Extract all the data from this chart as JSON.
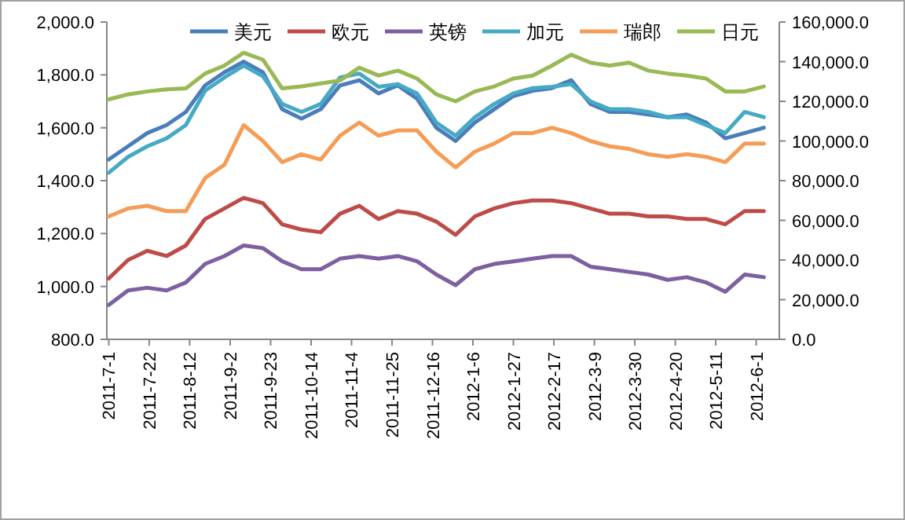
{
  "chart_data": {
    "type": "line",
    "x": [
      "2011-07-01",
      "2011-07-11",
      "2011-07-21",
      "2011-07-31",
      "2011-08-10",
      "2011-08-20",
      "2011-08-30",
      "2011-09-09",
      "2011-09-19",
      "2011-09-29",
      "2011-10-09",
      "2011-10-19",
      "2011-10-29",
      "2011-11-08",
      "2011-11-18",
      "2011-11-28",
      "2011-12-08",
      "2011-12-18",
      "2011-12-28",
      "2012-01-07",
      "2012-01-17",
      "2012-01-27",
      "2012-02-06",
      "2012-02-16",
      "2012-02-26",
      "2012-03-07",
      "2012-03-17",
      "2012-03-27",
      "2012-04-06",
      "2012-04-16",
      "2012-04-26",
      "2012-05-06",
      "2012-05-16",
      "2012-05-26",
      "2012-06-05"
    ],
    "series": [
      {
        "name": "美元",
        "color": "#4a7ebb",
        "values": [
          1480,
          1530,
          1580,
          1610,
          1660,
          1760,
          1810,
          1850,
          1810,
          1670,
          1635,
          1670,
          1760,
          1780,
          1730,
          1760,
          1710,
          1600,
          1550,
          1620,
          1670,
          1720,
          1740,
          1750,
          1780,
          1690,
          1660,
          1660,
          1650,
          1640,
          1650,
          1620,
          1560,
          1580,
          1600
        ]
      },
      {
        "name": "欧元",
        "color": "#be4b48",
        "values": [
          1030,
          1100,
          1135,
          1115,
          1155,
          1255,
          1295,
          1335,
          1315,
          1235,
          1215,
          1205,
          1275,
          1305,
          1255,
          1285,
          1275,
          1245,
          1195,
          1265,
          1295,
          1315,
          1325,
          1325,
          1315,
          1295,
          1275,
          1275,
          1265,
          1265,
          1255,
          1255,
          1235,
          1285,
          1285
        ]
      },
      {
        "name": "英镑",
        "color": "#7d60a0",
        "values": [
          930,
          985,
          995,
          985,
          1015,
          1085,
          1115,
          1155,
          1145,
          1095,
          1065,
          1065,
          1105,
          1115,
          1105,
          1115,
          1095,
          1045,
          1005,
          1065,
          1085,
          1095,
          1105,
          1115,
          1115,
          1075,
          1065,
          1055,
          1045,
          1025,
          1035,
          1015,
          980,
          1045,
          1035
        ]
      },
      {
        "name": "加元",
        "color": "#46aac5",
        "values": [
          1430,
          1490,
          1530,
          1560,
          1610,
          1740,
          1790,
          1835,
          1795,
          1690,
          1660,
          1690,
          1790,
          1805,
          1755,
          1765,
          1730,
          1620,
          1570,
          1640,
          1690,
          1730,
          1750,
          1755,
          1765,
          1700,
          1670,
          1670,
          1660,
          1640,
          1640,
          1610,
          1580,
          1660,
          1640
        ]
      },
      {
        "name": "瑞郎",
        "color": "#f59d56",
        "values": [
          1265,
          1295,
          1305,
          1285,
          1285,
          1410,
          1460,
          1610,
          1550,
          1470,
          1500,
          1480,
          1570,
          1620,
          1570,
          1590,
          1590,
          1510,
          1450,
          1510,
          1540,
          1580,
          1580,
          1600,
          1580,
          1550,
          1530,
          1520,
          1500,
          1490,
          1500,
          1490,
          1470,
          1540,
          1540
        ]
      },
      {
        "name": "日元",
        "color": "#98b954",
        "axis": "y2",
        "values": [
          121000,
          123500,
          125000,
          126000,
          126500,
          134000,
          138000,
          144500,
          141000,
          126500,
          127500,
          129000,
          130500,
          137000,
          133000,
          135500,
          131500,
          123500,
          120000,
          125000,
          127500,
          131500,
          133000,
          138000,
          143500,
          139500,
          138000,
          139500,
          135500,
          134000,
          133000,
          131500,
          125000,
          125000,
          127500
        ]
      }
    ],
    "xlim": [
      "2011-06-30",
      "2012-06-13"
    ],
    "xticks": [
      {
        "value": "2011-07-01",
        "label": "2011-7-1"
      },
      {
        "value": "2011-07-22",
        "label": "2011-7-22"
      },
      {
        "value": "2011-08-12",
        "label": "2011-8-12"
      },
      {
        "value": "2011-09-02",
        "label": "2011-9-2"
      },
      {
        "value": "2011-09-23",
        "label": "2011-9-23"
      },
      {
        "value": "2011-10-14",
        "label": "2011-10-14"
      },
      {
        "value": "2011-11-04",
        "label": "2011-11-4"
      },
      {
        "value": "2011-11-25",
        "label": "2011-11-25"
      },
      {
        "value": "2011-12-16",
        "label": "2011-12-16"
      },
      {
        "value": "2012-01-06",
        "label": "2012-1-6"
      },
      {
        "value": "2012-01-27",
        "label": "2012-1-27"
      },
      {
        "value": "2012-02-17",
        "label": "2012-2-17"
      },
      {
        "value": "2012-03-09",
        "label": "2012-3-9"
      },
      {
        "value": "2012-03-30",
        "label": "2012-3-30"
      },
      {
        "value": "2012-04-20",
        "label": "2012-4-20"
      },
      {
        "value": "2012-05-11",
        "label": "2012-5-11"
      },
      {
        "value": "2012-06-01",
        "label": "2012-6-1"
      }
    ],
    "ylim": [
      800,
      2000
    ],
    "yticks": [
      {
        "value": 800,
        "label": "800.0"
      },
      {
        "value": 1000,
        "label": "1,000.0"
      },
      {
        "value": 1200,
        "label": "1,200.0"
      },
      {
        "value": 1400,
        "label": "1,400.0"
      },
      {
        "value": 1600,
        "label": "1,600.0"
      },
      {
        "value": 1800,
        "label": "1,800.0"
      },
      {
        "value": 2000,
        "label": "2,000.0"
      }
    ],
    "y2lim": [
      0,
      160000
    ],
    "y2ticks": [
      {
        "value": 0,
        "label": "0.0"
      },
      {
        "value": 20000,
        "label": "20,000.0"
      },
      {
        "value": 40000,
        "label": "40,000.0"
      },
      {
        "value": 60000,
        "label": "60,000.0"
      },
      {
        "value": 80000,
        "label": "80,000.0"
      },
      {
        "value": 100000,
        "label": "100,000.0"
      },
      {
        "value": 120000,
        "label": "120,000.0"
      },
      {
        "value": 140000,
        "label": "140,000.0"
      },
      {
        "value": 160000,
        "label": "160,000.0"
      }
    ],
    "grid": false,
    "legend": "top",
    "line_style": "solid",
    "marker": "none"
  }
}
